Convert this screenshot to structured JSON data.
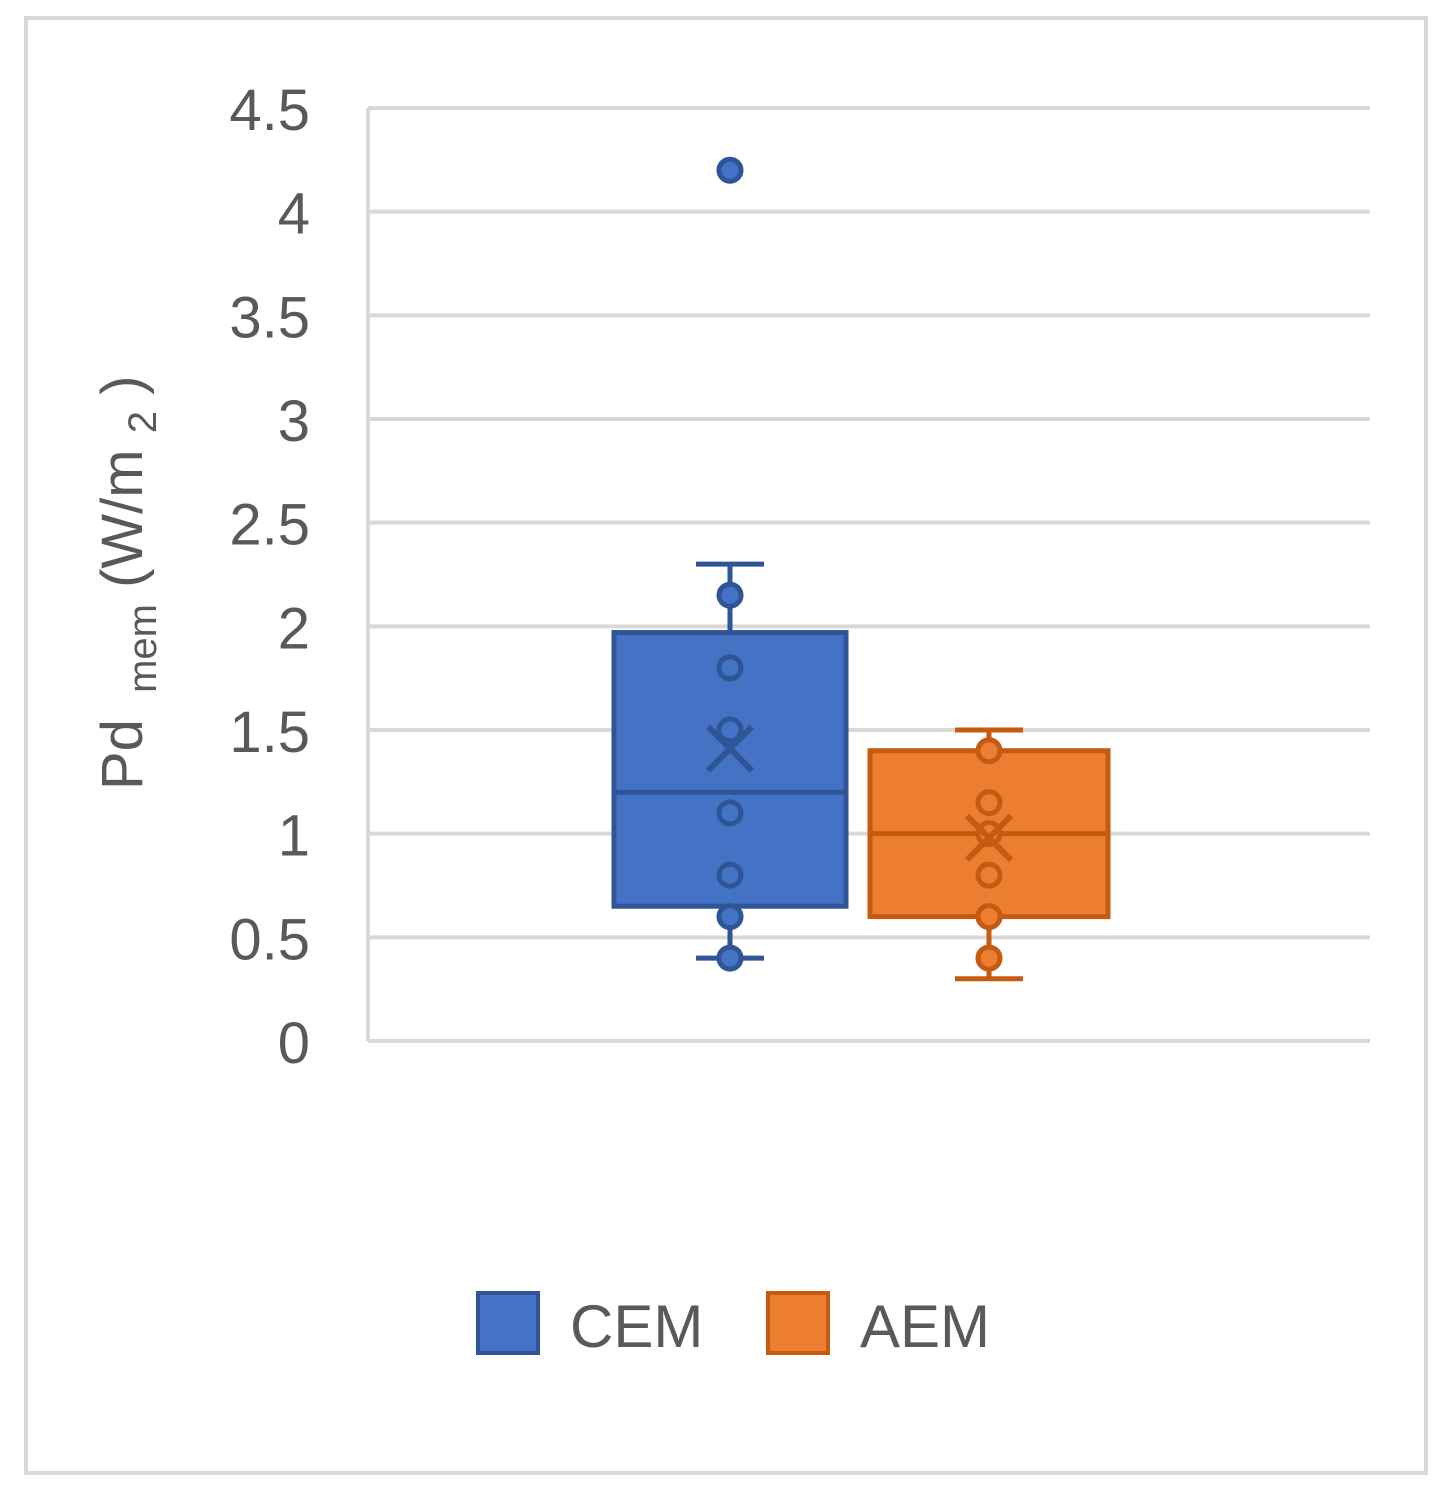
{
  "chart_data": {
    "type": "box",
    "title": "",
    "ylabel": {
      "main": "Pd",
      "sub1": "mem",
      "unit_open": " (W/m",
      "sub2": "2",
      "unit_close": ")"
    },
    "ylim": [
      0,
      4.5
    ],
    "yticks": [
      0,
      0.5,
      1,
      1.5,
      2,
      2.5,
      3,
      3.5,
      4,
      4.5
    ],
    "ytick_labels": [
      "0",
      "0.5",
      "1",
      "1.5",
      "2",
      "2.5",
      "3",
      "3.5",
      "4",
      "4.5"
    ],
    "grid": true,
    "legend_position": "bottom",
    "series": [
      {
        "name": "CEM",
        "color": "#4472C4",
        "stroke": "#2F5597",
        "q1": 0.65,
        "median": 1.2,
        "q3": 1.97,
        "mean": 1.41,
        "whisker_low": 0.4,
        "whisker_high": 2.3,
        "points": [
          0.4,
          0.6,
          0.8,
          1.1,
          1.5,
          1.8,
          2.15
        ],
        "outliers": [
          4.2
        ]
      },
      {
        "name": "AEM",
        "color": "#ED7D31",
        "stroke": "#C55A11",
        "q1": 0.6,
        "median": 1.0,
        "q3": 1.4,
        "mean": 0.98,
        "whisker_low": 0.3,
        "whisker_high": 1.5,
        "points": [
          0.4,
          0.6,
          0.8,
          1.0,
          1.15,
          1.4
        ],
        "outliers": []
      }
    ]
  }
}
